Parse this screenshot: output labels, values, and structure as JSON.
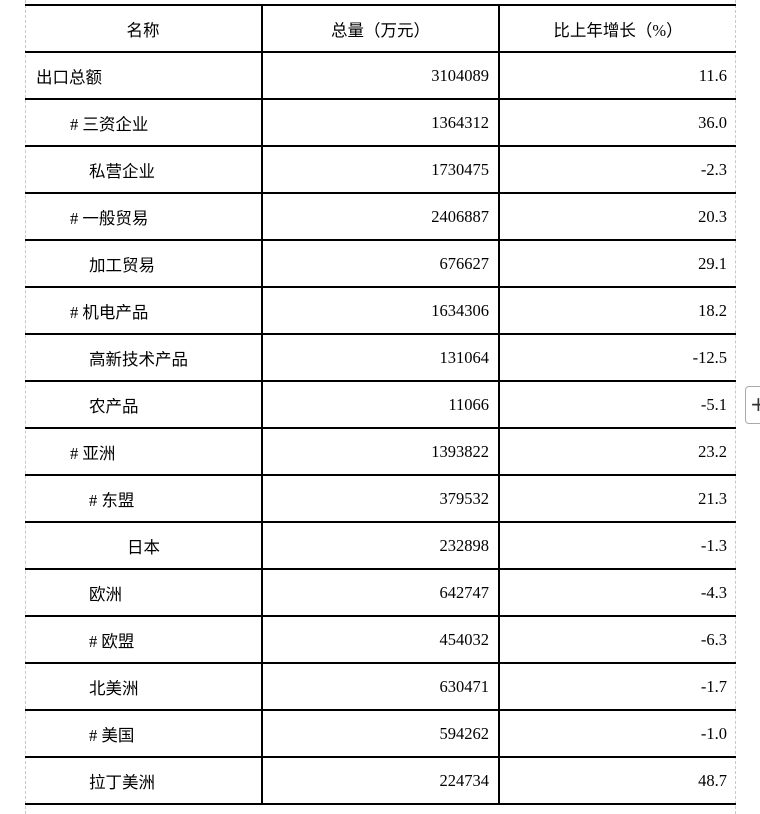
{
  "table": {
    "headers": [
      "名称",
      "总量（万元）",
      "比上年增长（%）"
    ],
    "rows": [
      {
        "name": "出口总额",
        "level": 0,
        "total": "3104089",
        "growth": "11.6"
      },
      {
        "name": "# 三资企业",
        "level": 1,
        "total": "1364312",
        "growth": "36.0"
      },
      {
        "name": "私营企业",
        "level": 2,
        "total": "1730475",
        "growth": "-2.3"
      },
      {
        "name": "# 一般贸易",
        "level": 1,
        "total": "2406887",
        "growth": "20.3"
      },
      {
        "name": "加工贸易",
        "level": 2,
        "total": "676627",
        "growth": "29.1"
      },
      {
        "name": "# 机电产品",
        "level": 1,
        "total": "1634306",
        "growth": "18.2"
      },
      {
        "name": "高新技术产品",
        "level": 2,
        "total": "131064",
        "growth": "-12.5"
      },
      {
        "name": "农产品",
        "level": 2,
        "total": "11066",
        "growth": "-5.1"
      },
      {
        "name": "# 亚洲",
        "level": 1,
        "total": "1393822",
        "growth": "23.2"
      },
      {
        "name": "# 东盟",
        "level": 2,
        "total": "379532",
        "growth": "21.3"
      },
      {
        "name": "日本",
        "level": 3,
        "total": "232898",
        "growth": "-1.3"
      },
      {
        "name": "欧洲",
        "level": 2,
        "total": "642747",
        "growth": "-4.3"
      },
      {
        "name": "# 欧盟",
        "level": 2,
        "total": "454032",
        "growth": "-6.3"
      },
      {
        "name": "北美洲",
        "level": 2,
        "total": "630471",
        "growth": "-1.7"
      },
      {
        "name": "# 美国",
        "level": 2,
        "total": "594262",
        "growth": "-1.0"
      },
      {
        "name": "拉丁美洲",
        "level": 2,
        "total": "224734",
        "growth": "48.7"
      }
    ]
  },
  "plus_button": {
    "icon": "plus-icon",
    "label": "+"
  }
}
